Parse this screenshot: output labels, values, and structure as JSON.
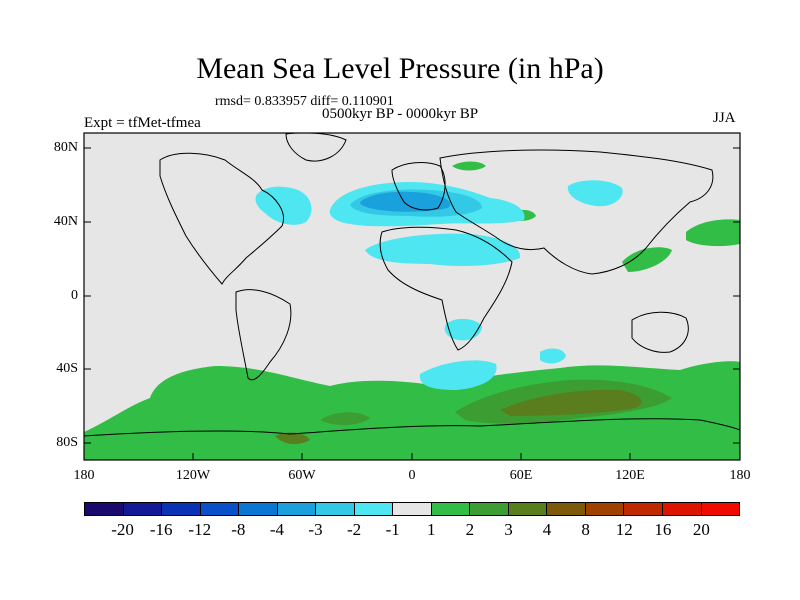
{
  "title": "Mean Sea Level Pressure (in hPa)",
  "stats": "rmsd= 0.833957 diff= 0.110901",
  "subtitle": "0500kyr BP - 0000kyr BP",
  "experiment": "Expt = tfMet-tfmea",
  "season": "JJA",
  "axes": {
    "lat_ticks": [
      "80N",
      "40N",
      "0",
      "40S",
      "80S"
    ],
    "lon_ticks": [
      "180",
      "120W",
      "60W",
      "0",
      "60E",
      "120E",
      "180"
    ]
  },
  "colorbar": {
    "labels": [
      "-20",
      "-16",
      "-12",
      "-8",
      "-4",
      "-3",
      "-2",
      "-1",
      "1",
      "2",
      "3",
      "4",
      "8",
      "12",
      "16",
      "20"
    ],
    "colors": [
      "#1a0a6e",
      "#141a96",
      "#0a32b4",
      "#0a50c8",
      "#0a78d2",
      "#1aa0dc",
      "#32c8e6",
      "#4ee6f0",
      "#e6e6e6",
      "#32be46",
      "#3c9e32",
      "#5a7d1e",
      "#7d5a0a",
      "#a04100",
      "#c02800",
      "#dc1400",
      "#f00a00"
    ]
  },
  "colors": {
    "ocean_background": "#e6e6e6",
    "neg1": "#4ee6f0",
    "neg2": "#32c8e6",
    "neg3": "#1aa0dc",
    "pos1": "#32be46",
    "pos2": "#3c9e32",
    "pos3": "#5a7d1e"
  }
}
